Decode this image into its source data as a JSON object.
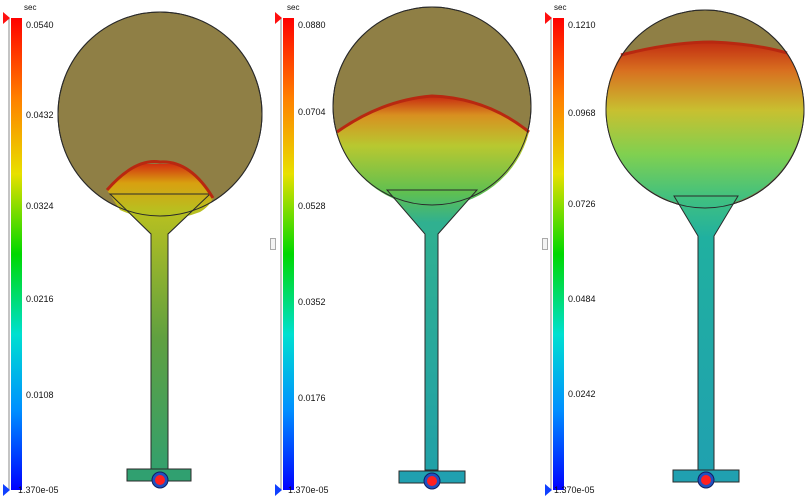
{
  "panels": [
    {
      "unit": "sec",
      "ticks": [
        "0.0540",
        "0.0432",
        "0.0324",
        "0.0216",
        "0.0108",
        "1.370e-05"
      ],
      "fill_front": 0.32
    },
    {
      "unit": "sec",
      "ticks": [
        "0.0880",
        "0.0704",
        "0.0528",
        "0.0352",
        "0.0176",
        "1.370e-05"
      ],
      "fill_front": 0.58
    },
    {
      "unit": "sec",
      "ticks": [
        "0.1210",
        "0.0968",
        "0.0726",
        "0.0484",
        "0.0242",
        "1.370e-05"
      ],
      "fill_front": 0.87
    }
  ],
  "colors": {
    "unfilled": "#8f7f45",
    "flow_front": "#c83010",
    "gate": "#ff2020",
    "marker_top": "#ff1010",
    "marker_bottom": "#1040ff"
  }
}
